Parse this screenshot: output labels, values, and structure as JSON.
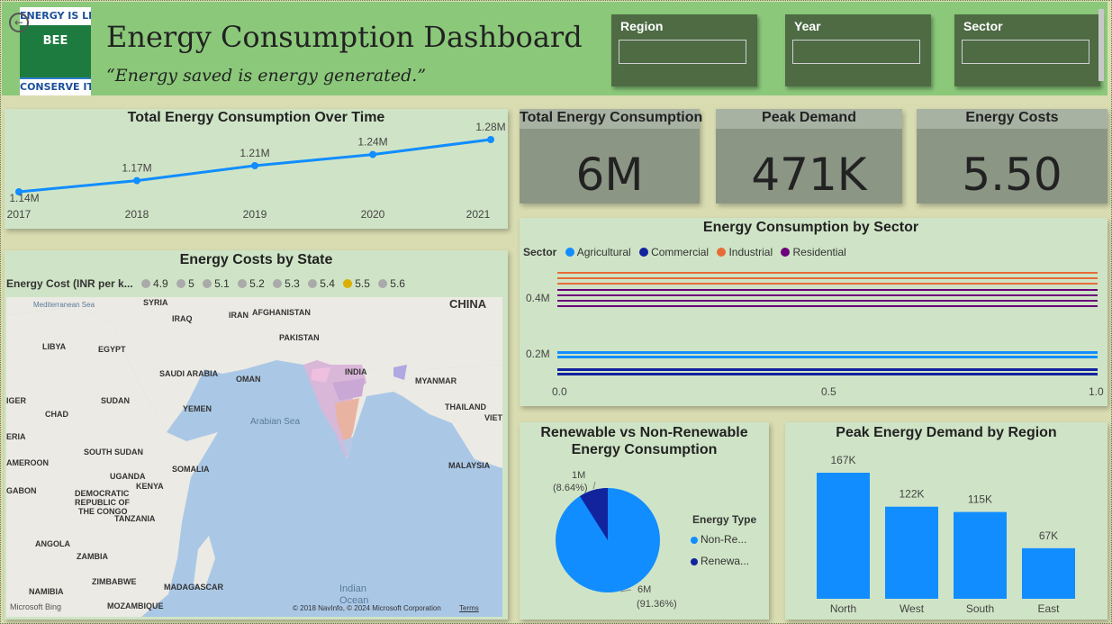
{
  "header": {
    "logo_top": "ENERGY IS LIFE",
    "logo_mid": "BEE",
    "logo_bottom": "CONSERVE IT",
    "title": "Energy Consumption Dashboard",
    "subtitle": "“Energy saved is energy generated.”"
  },
  "slicers": [
    {
      "label": "Region",
      "value": ""
    },
    {
      "label": "Year",
      "value": ""
    },
    {
      "label": "Sector",
      "value": ""
    }
  ],
  "kpis": [
    {
      "title": "Total Energy Consumption",
      "value": "6M"
    },
    {
      "title": "Peak Demand",
      "value": "471K"
    },
    {
      "title": "Energy Costs",
      "value": "5.50"
    }
  ],
  "line_chart": {
    "title": "Total Energy Consumption Over Time",
    "labels": [
      "1.14M",
      "1.17M",
      "1.21M",
      "1.24M",
      "1.28M"
    ],
    "years": [
      "2017",
      "2018",
      "2019",
      "2020",
      "2021"
    ]
  },
  "sector_chart": {
    "title": "Energy Consumption by Sector",
    "legend_title": "Sector",
    "legend": [
      "Agricultural",
      "Commercial",
      "Industrial",
      "Residential"
    ],
    "y_ticks": [
      "0.4M",
      "0.2M"
    ],
    "x_ticks": [
      "0.0",
      "0.5",
      "1.0"
    ]
  },
  "map_card": {
    "title": "Energy Costs by State",
    "legend_title": "Energy Cost (INR per k...",
    "legend_values": [
      "4.9",
      "5",
      "5.1",
      "5.2",
      "5.3",
      "5.4",
      "5.5",
      "5.6"
    ],
    "labels": [
      "SYRIA",
      "IRAQ",
      "IRAN",
      "AFGHANISTAN",
      "PAKISTAN",
      "CHINA",
      "LIBYA",
      "EGYPT",
      "SAUDI ARABIA",
      "OMAN",
      "INDIA",
      "MYANMAR",
      "IGER",
      "SUDAN",
      "CHAD",
      "YEMEN",
      "THAILAND",
      "VIET",
      "ERIA",
      "SOUTH SUDAN",
      "AMEROON",
      "SOMALIA",
      "UGANDA",
      "KENYA",
      "GABON",
      "DEMOCRATIC",
      "REPUBLIC OF",
      "THE CONGO",
      "TANZANIA",
      "ANGOLA",
      "ZAMBIA",
      "ZIMBABWE",
      "MADAGASCAR",
      "NAMIBIA",
      "MOZAMBIQUE",
      "MALAYSIA"
    ],
    "sea_labels": [
      "Mediterranean Sea",
      "Arabian Sea",
      "Indian",
      "Ocean"
    ],
    "brand": "Microsoft Bing",
    "copyright": "© 2018 NavInfo, © 2024 Microsoft Corporation",
    "terms": "Terms"
  },
  "pie_card": {
    "title_line1": "Renewable vs Non-Renewable",
    "title_line2": "Energy Consumption",
    "slice_small_value": "1M",
    "slice_small_pct": "(8.64%)",
    "slice_large_value": "6M",
    "slice_large_pct": "(91.36%)",
    "legend_title": "Energy Type",
    "legend": [
      "Non-Re...",
      "Renewa..."
    ]
  },
  "bar_card": {
    "title": "Peak Energy Demand by Region",
    "labels": [
      "167K",
      "122K",
      "115K",
      "67K"
    ],
    "regions": [
      "North",
      "West",
      "South",
      "East"
    ]
  },
  "chart_data": [
    {
      "type": "line",
      "title": "Total Energy Consumption Over Time",
      "x": [
        2017,
        2018,
        2019,
        2020,
        2021
      ],
      "values": [
        1140000,
        1170000,
        1210000,
        1240000,
        1280000
      ],
      "color": "#118dff"
    },
    {
      "type": "bar",
      "title": "Peak Energy Demand by Region",
      "categories": [
        "North",
        "West",
        "South",
        "East"
      ],
      "values": [
        167000,
        122000,
        115000,
        67000
      ],
      "color": "#118dff"
    },
    {
      "type": "pie",
      "title": "Renewable vs Non-Renewable Energy Consumption",
      "categories": [
        "Non-Re...",
        "Renewa..."
      ],
      "values": [
        91.36,
        8.64
      ],
      "colors": [
        "#118dff",
        "#12239e"
      ]
    },
    {
      "type": "bar",
      "title": "Energy Consumption by Sector",
      "series": [
        {
          "name": "Agricultural",
          "color": "#118dff"
        },
        {
          "name": "Commercial",
          "color": "#12239e"
        },
        {
          "name": "Industrial",
          "color": "#e66c37"
        },
        {
          "name": "Residential",
          "color": "#6b007b"
        }
      ],
      "xlim": [
        0,
        1
      ],
      "y_ticks": [
        0.2,
        0.4
      ]
    }
  ],
  "colors": {
    "header_bg": "#8bc87a",
    "slicer_bg": "#4e6b44",
    "card_bg": "#cfe4c6",
    "kpi_bg": "#8b9685",
    "accent": "#118dff"
  }
}
